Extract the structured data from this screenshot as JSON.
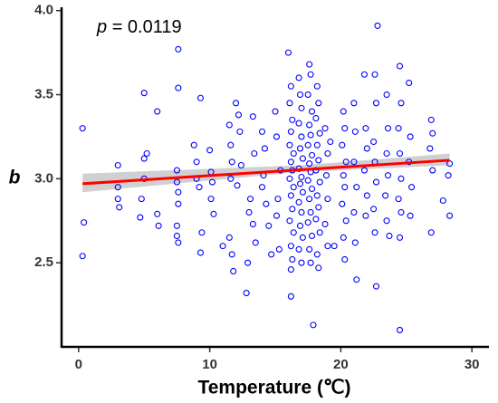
{
  "chart_data": {
    "type": "scatter",
    "annotation": {
      "variable": "p",
      "text": "= 0.0119"
    },
    "x_label": "Temperature (℃)",
    "y_label": "b",
    "xlim": [
      -1.3,
      31.3
    ],
    "ylim": [
      2.0,
      4.02
    ],
    "xticks": [
      0,
      10,
      20,
      30
    ],
    "yticks": [
      2.5,
      {
        "value": 3,
        "label": "3.0"
      },
      3.5,
      {
        "value": 4,
        "label": "4.0"
      }
    ],
    "grid": false,
    "color": "#0000ff",
    "x": [
      0.3,
      0.4,
      0.3,
      3,
      3,
      3,
      3.1,
      5,
      5,
      5,
      4.8,
      4.7,
      5.2,
      6,
      6,
      6.1,
      7.6,
      7.6,
      7.5,
      7.5,
      7.6,
      7.6,
      7.5,
      7.6,
      7.5,
      8.8,
      9,
      9,
      9.2,
      9.3,
      9.4,
      9.3,
      10,
      10.1,
      10.2,
      10.1,
      10.3,
      11,
      11.5,
      11.6,
      11.7,
      11.6,
      11.5,
      11.7,
      11.8,
      12,
      12.2,
      12.3,
      12.1,
      12.4,
      12.8,
      12.9,
      13,
      13.1,
      13.3,
      13.4,
      13.3,
      13.5,
      14,
      14.2,
      14.1,
      14,
      14.3,
      14.5,
      14.7,
      15,
      15.1,
      15.2,
      15.1,
      15.3,
      15.4,
      16,
      16.2,
      16.1,
      16.3,
      16.2,
      16.1,
      16.4,
      16.2,
      16.3,
      16.1,
      16.4,
      16.2,
      16.3,
      16.1,
      16.4,
      16.2,
      16.3,
      16.2,
      16.2,
      16.8,
      16.9,
      17,
      16.8,
      17,
      16.9,
      17.1,
      16.8,
      17,
      16.9,
      17.1,
      16.8,
      17,
      16.9,
      17.1,
      16.8,
      17,
      17.6,
      17.7,
      17.5,
      17.8,
      17.6,
      17.7,
      17.5,
      17.8,
      17.6,
      17.7,
      17.5,
      17.8,
      17.6,
      17.7,
      17.5,
      17.8,
      17.6,
      17.7,
      17.9,
      18.2,
      18.3,
      18.1,
      18.4,
      18.2,
      18.3,
      18.1,
      18.4,
      18.2,
      18.3,
      18.1,
      18.4,
      18.2,
      18.3,
      18.8,
      19,
      18.9,
      19,
      18.8,
      19,
      19.2,
      19.5,
      20.2,
      20.3,
      20.1,
      20.4,
      20.2,
      20.3,
      20.1,
      20.4,
      20.2,
      20.3,
      21,
      21.1,
      21,
      21.2,
      21,
      21.1,
      21.2,
      21.8,
      21.9,
      22,
      21.8,
      22,
      21.9,
      22.6,
      22.7,
      22.5,
      22.6,
      22.7,
      22.5,
      22.6,
      22.7,
      22.8,
      23.5,
      23.6,
      23.5,
      23.6,
      23.4,
      23.5,
      23.7,
      24.5,
      24.6,
      24.4,
      24.5,
      24.6,
      24.4,
      24.6,
      24.5,
      24.5,
      25.2,
      25.3,
      25.2,
      25.4,
      25.3,
      26.9,
      27,
      26.8,
      27,
      26.9,
      28.3,
      28.3,
      28.2,
      27.8
    ],
    "values": [
      3.3,
      2.74,
      2.54,
      3.08,
      2.95,
      2.88,
      2.83,
      3.51,
      3.12,
      3.0,
      2.88,
      2.77,
      3.15,
      3.4,
      2.79,
      2.72,
      3.77,
      3.54,
      3.05,
      2.98,
      2.92,
      2.85,
      2.66,
      2.62,
      2.72,
      3.2,
      3.1,
      3.0,
      2.95,
      3.48,
      2.68,
      2.56,
      3.17,
      3.04,
      2.98,
      2.88,
      2.79,
      2.6,
      3.32,
      3.2,
      3.1,
      3.0,
      2.65,
      2.55,
      2.45,
      3.45,
      3.38,
      3.28,
      2.96,
      3.08,
      2.32,
      2.5,
      2.8,
      2.88,
      3.37,
      3.15,
      2.73,
      2.62,
      3.28,
      3.18,
      3.02,
      2.95,
      2.85,
      2.72,
      2.55,
      3.4,
      3.25,
      2.88,
      2.78,
      2.58,
      3.05,
      3.75,
      3.55,
      3.45,
      3.35,
      3.28,
      3.2,
      3.15,
      3.1,
      3.05,
      3.0,
      2.95,
      2.9,
      2.82,
      2.75,
      2.68,
      2.6,
      2.52,
      2.46,
      2.3,
      3.6,
      3.5,
      3.42,
      3.33,
      3.25,
      3.18,
      3.12,
      3.06,
      3.01,
      2.97,
      2.92,
      2.86,
      2.8,
      2.72,
      2.65,
      2.58,
      2.5,
      3.68,
      3.62,
      3.5,
      3.4,
      3.32,
      3.26,
      3.2,
      3.14,
      3.09,
      3.04,
      2.99,
      2.94,
      2.88,
      2.8,
      2.74,
      2.66,
      2.58,
      2.5,
      2.13,
      3.55,
      3.45,
      3.36,
      3.27,
      3.2,
      3.11,
      3.05,
      2.98,
      2.9,
      2.83,
      2.76,
      2.68,
      2.55,
      2.47,
      3.3,
      3.15,
      3.02,
      2.88,
      2.73,
      2.6,
      3.22,
      2.6,
      3.4,
      3.3,
      3.2,
      3.1,
      3.02,
      2.95,
      2.85,
      2.75,
      2.65,
      2.52,
      3.45,
      3.28,
      3.1,
      2.95,
      2.8,
      2.62,
      2.4,
      3.62,
      3.3,
      3.18,
      3.05,
      2.9,
      2.78,
      3.62,
      3.45,
      3.22,
      3.1,
      2.98,
      2.82,
      2.68,
      2.36,
      3.91,
      3.5,
      3.3,
      3.15,
      3.02,
      2.9,
      2.75,
      2.66,
      3.67,
      3.45,
      3.3,
      3.15,
      3.0,
      2.88,
      2.8,
      2.65,
      2.1,
      3.57,
      3.25,
      3.1,
      2.95,
      2.78,
      3.35,
      3.27,
      3.18,
      3.05,
      2.68,
      3.09,
      2.78,
      3.02,
      2.87
    ],
    "fit": {
      "color": "#ff0000",
      "x": [
        0.3,
        28.3
      ],
      "values": [
        2.97,
        3.11
      ]
    },
    "band": {
      "color": "#c8c8c8",
      "x": [
        0.3,
        17,
        28.3
      ],
      "lower": [
        2.92,
        3.04,
        3.08
      ],
      "upper": [
        3.03,
        3.08,
        3.15
      ]
    }
  }
}
